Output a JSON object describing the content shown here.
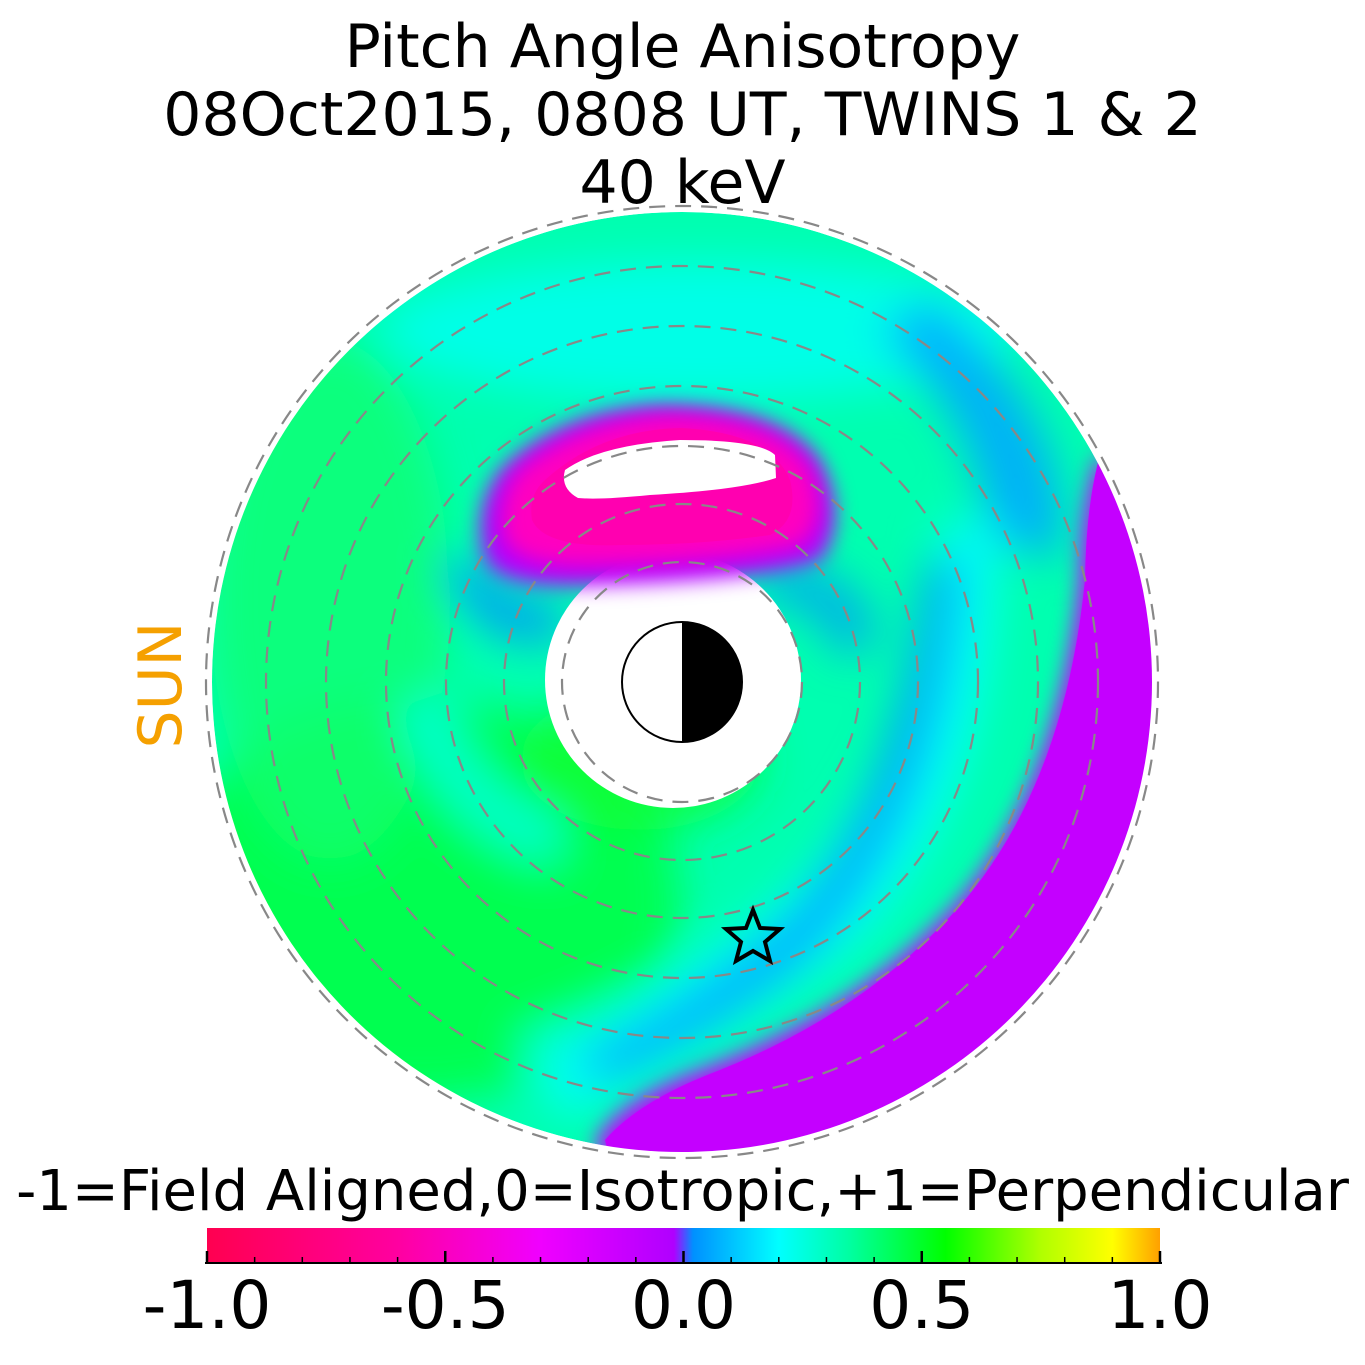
{
  "chart_data": {
    "type": "heatmap",
    "title": [
      "Pitch Angle Anisotropy",
      "08Oct2015, 0808 UT,  TWINS 1 & 2",
      "40 keV"
    ],
    "orientation_label": "SUN",
    "colorbar": {
      "label": "-1=Field Aligned,0=Isotropic,+1=Perpendicular",
      "range": [
        -1.0,
        1.0
      ],
      "tick_labels": [
        "-1.0",
        "-0.5",
        "0.0",
        "0.5",
        "1.0"
      ],
      "tick_values": [
        -1.0,
        -0.5,
        0.0,
        0.5,
        1.0
      ],
      "stops": [
        {
          "value": -1.0,
          "color": "#ff0050"
        },
        {
          "value": -0.6,
          "color": "#ff00a0"
        },
        {
          "value": -0.3,
          "color": "#f000ff"
        },
        {
          "value": -0.02,
          "color": "#b000ff"
        },
        {
          "value": 0.02,
          "color": "#0090ff"
        },
        {
          "value": 0.2,
          "color": "#00ffff"
        },
        {
          "value": 0.35,
          "color": "#00ffa0"
        },
        {
          "value": 0.55,
          "color": "#00ff00"
        },
        {
          "value": 0.75,
          "color": "#b0ff00"
        },
        {
          "value": 0.9,
          "color": "#ffff00"
        },
        {
          "value": 1.0,
          "color": "#ffa000"
        }
      ]
    },
    "grid": "dashed concentric circles",
    "markers": [
      "earth-symbol",
      "star"
    ],
    "regions": [
      {
        "name": "perpendicular-arc",
        "value": -0.05
      },
      {
        "name": "field-aligned-cap",
        "value": -0.4
      },
      {
        "name": "isotropic-green",
        "value": 0.45
      },
      {
        "name": "transition-cyan",
        "value": 0.25
      }
    ]
  }
}
